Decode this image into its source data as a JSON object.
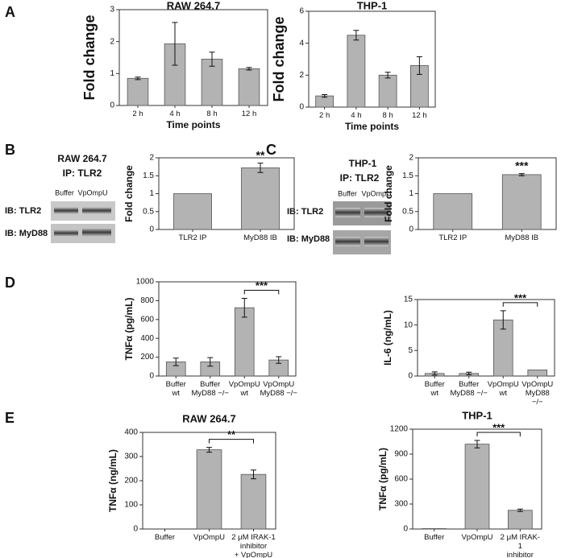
{
  "panel_labels": [
    "A",
    "B",
    "C",
    "D",
    "E"
  ],
  "blots": [
    {
      "title": "RAW 264.7",
      "subtitle": "IP: TLR2",
      "lanes": [
        "Buffer",
        "VpOmpU"
      ],
      "rows": [
        "IB: TLR2",
        "IB: MyD88"
      ]
    },
    {
      "title": "THP-1",
      "subtitle": "IP: TLR2",
      "lanes": [
        "Buffer",
        "VpOmpU"
      ],
      "rows": [
        "IB: TLR2",
        "IB: MyD88"
      ]
    }
  ],
  "chart_data": [
    {
      "type": "bar",
      "title": "RAW 264.7",
      "xlabel": "Time points",
      "ylabel": "Fold change",
      "color": "#b3b3b3",
      "categories": [
        "2 h",
        "4 h",
        "8 h",
        "12 h"
      ],
      "values": [
        0.85,
        1.93,
        1.45,
        1.15
      ],
      "errors": [
        0.04,
        0.67,
        0.22,
        0.04
      ],
      "ylim": [
        0,
        3
      ],
      "yticks": [
        0,
        1,
        2,
        3
      ]
    },
    {
      "type": "bar",
      "title": "THP-1",
      "xlabel": "Time points",
      "ylabel": "Fold change",
      "color": "#b3b3b3",
      "categories": [
        "2 h",
        "4 h",
        "8 h",
        "12 h"
      ],
      "values": [
        0.7,
        4.5,
        2.0,
        2.6
      ],
      "errors": [
        0.08,
        0.3,
        0.18,
        0.55
      ],
      "ylim": [
        0,
        6
      ],
      "yticks": [
        0,
        2,
        4,
        6
      ]
    },
    {
      "type": "bar",
      "ylabel": "Fold change",
      "color": "#b3b3b3",
      "categories": [
        "TLR2 IP",
        "MyD88 IB"
      ],
      "values": [
        1.0,
        1.72
      ],
      "errors": [
        null,
        0.13
      ],
      "ylim": [
        0,
        2
      ],
      "yticks": [
        0,
        0.5,
        1,
        1.5,
        2
      ],
      "annotations": [
        {
          "text": "**",
          "categories": [
            1
          ]
        }
      ]
    },
    {
      "type": "bar",
      "ylabel": "Fold change",
      "color": "#b3b3b3",
      "categories": [
        "TLR2 IP",
        "MyD88 IB"
      ],
      "values": [
        1.0,
        1.53
      ],
      "errors": [
        null,
        0.03
      ],
      "ylim": [
        0,
        2
      ],
      "yticks": [
        0,
        0.5,
        1,
        1.5,
        2
      ],
      "annotations": [
        {
          "text": "***",
          "categories": [
            1
          ]
        }
      ]
    },
    {
      "type": "bar",
      "ylabel": "TNFα (pg/mL)",
      "color": "#b3b3b3",
      "categories": [
        "Buffer\nwt",
        "Buffer\nMyD88 −/−",
        "VpOmpU\nwt",
        "VpOmpU\nMyD88 −/−"
      ],
      "values": [
        150,
        150,
        725,
        170
      ],
      "errors": [
        40,
        45,
        100,
        35
      ],
      "ylim": [
        0,
        1000
      ],
      "yticks": [
        0,
        200,
        400,
        600,
        800,
        1000
      ],
      "annotations": [
        {
          "text": "***",
          "categories": [
            2,
            3
          ]
        }
      ]
    },
    {
      "type": "bar",
      "ylabel": "IL-6 (ng/mL)",
      "color": "#b3b3b3",
      "categories": [
        "Buffer\nwt",
        "Buffer\nMyD88 −/−",
        "VpOmpU\nwt",
        "VpOmpU\nMyD88 −/−"
      ],
      "values": [
        0.5,
        0.5,
        11,
        1.2
      ],
      "errors": [
        0.3,
        0.25,
        1.8,
        null
      ],
      "ylim": [
        0,
        15
      ],
      "yticks": [
        0,
        5,
        10,
        15
      ],
      "annotations": [
        {
          "text": "***",
          "categories": [
            2,
            3
          ]
        }
      ]
    },
    {
      "type": "bar",
      "title": "RAW 264.7",
      "ylabel": "TNFα (ng/mL)",
      "color": "#b3b3b3",
      "categories": [
        "Buffer",
        "VpOmpU",
        "2 μM IRAK-1\ninhibitor\n+ VpOmpU"
      ],
      "values": [
        0,
        328,
        226
      ],
      "errors": [
        null,
        10,
        18
      ],
      "ylim": [
        0,
        400
      ],
      "yticks": [
        0,
        100,
        200,
        300,
        400
      ],
      "annotations": [
        {
          "text": "**",
          "categories": [
            1,
            2
          ]
        }
      ]
    },
    {
      "type": "bar",
      "title": "THP-1",
      "ylabel": "TNFα (pg/mL)",
      "color": "#b3b3b3",
      "categories": [
        "Buffer",
        "VpOmpU",
        "2 μM IRAK-1\ninhibitor\n+ VpOmpU"
      ],
      "values": [
        5,
        1020,
        225
      ],
      "errors": [
        null,
        45,
        15
      ],
      "ylim": [
        0,
        1200
      ],
      "yticks": [
        0,
        300,
        600,
        900,
        1200
      ],
      "annotations": [
        {
          "text": "***",
          "categories": [
            1,
            2
          ]
        }
      ]
    }
  ]
}
